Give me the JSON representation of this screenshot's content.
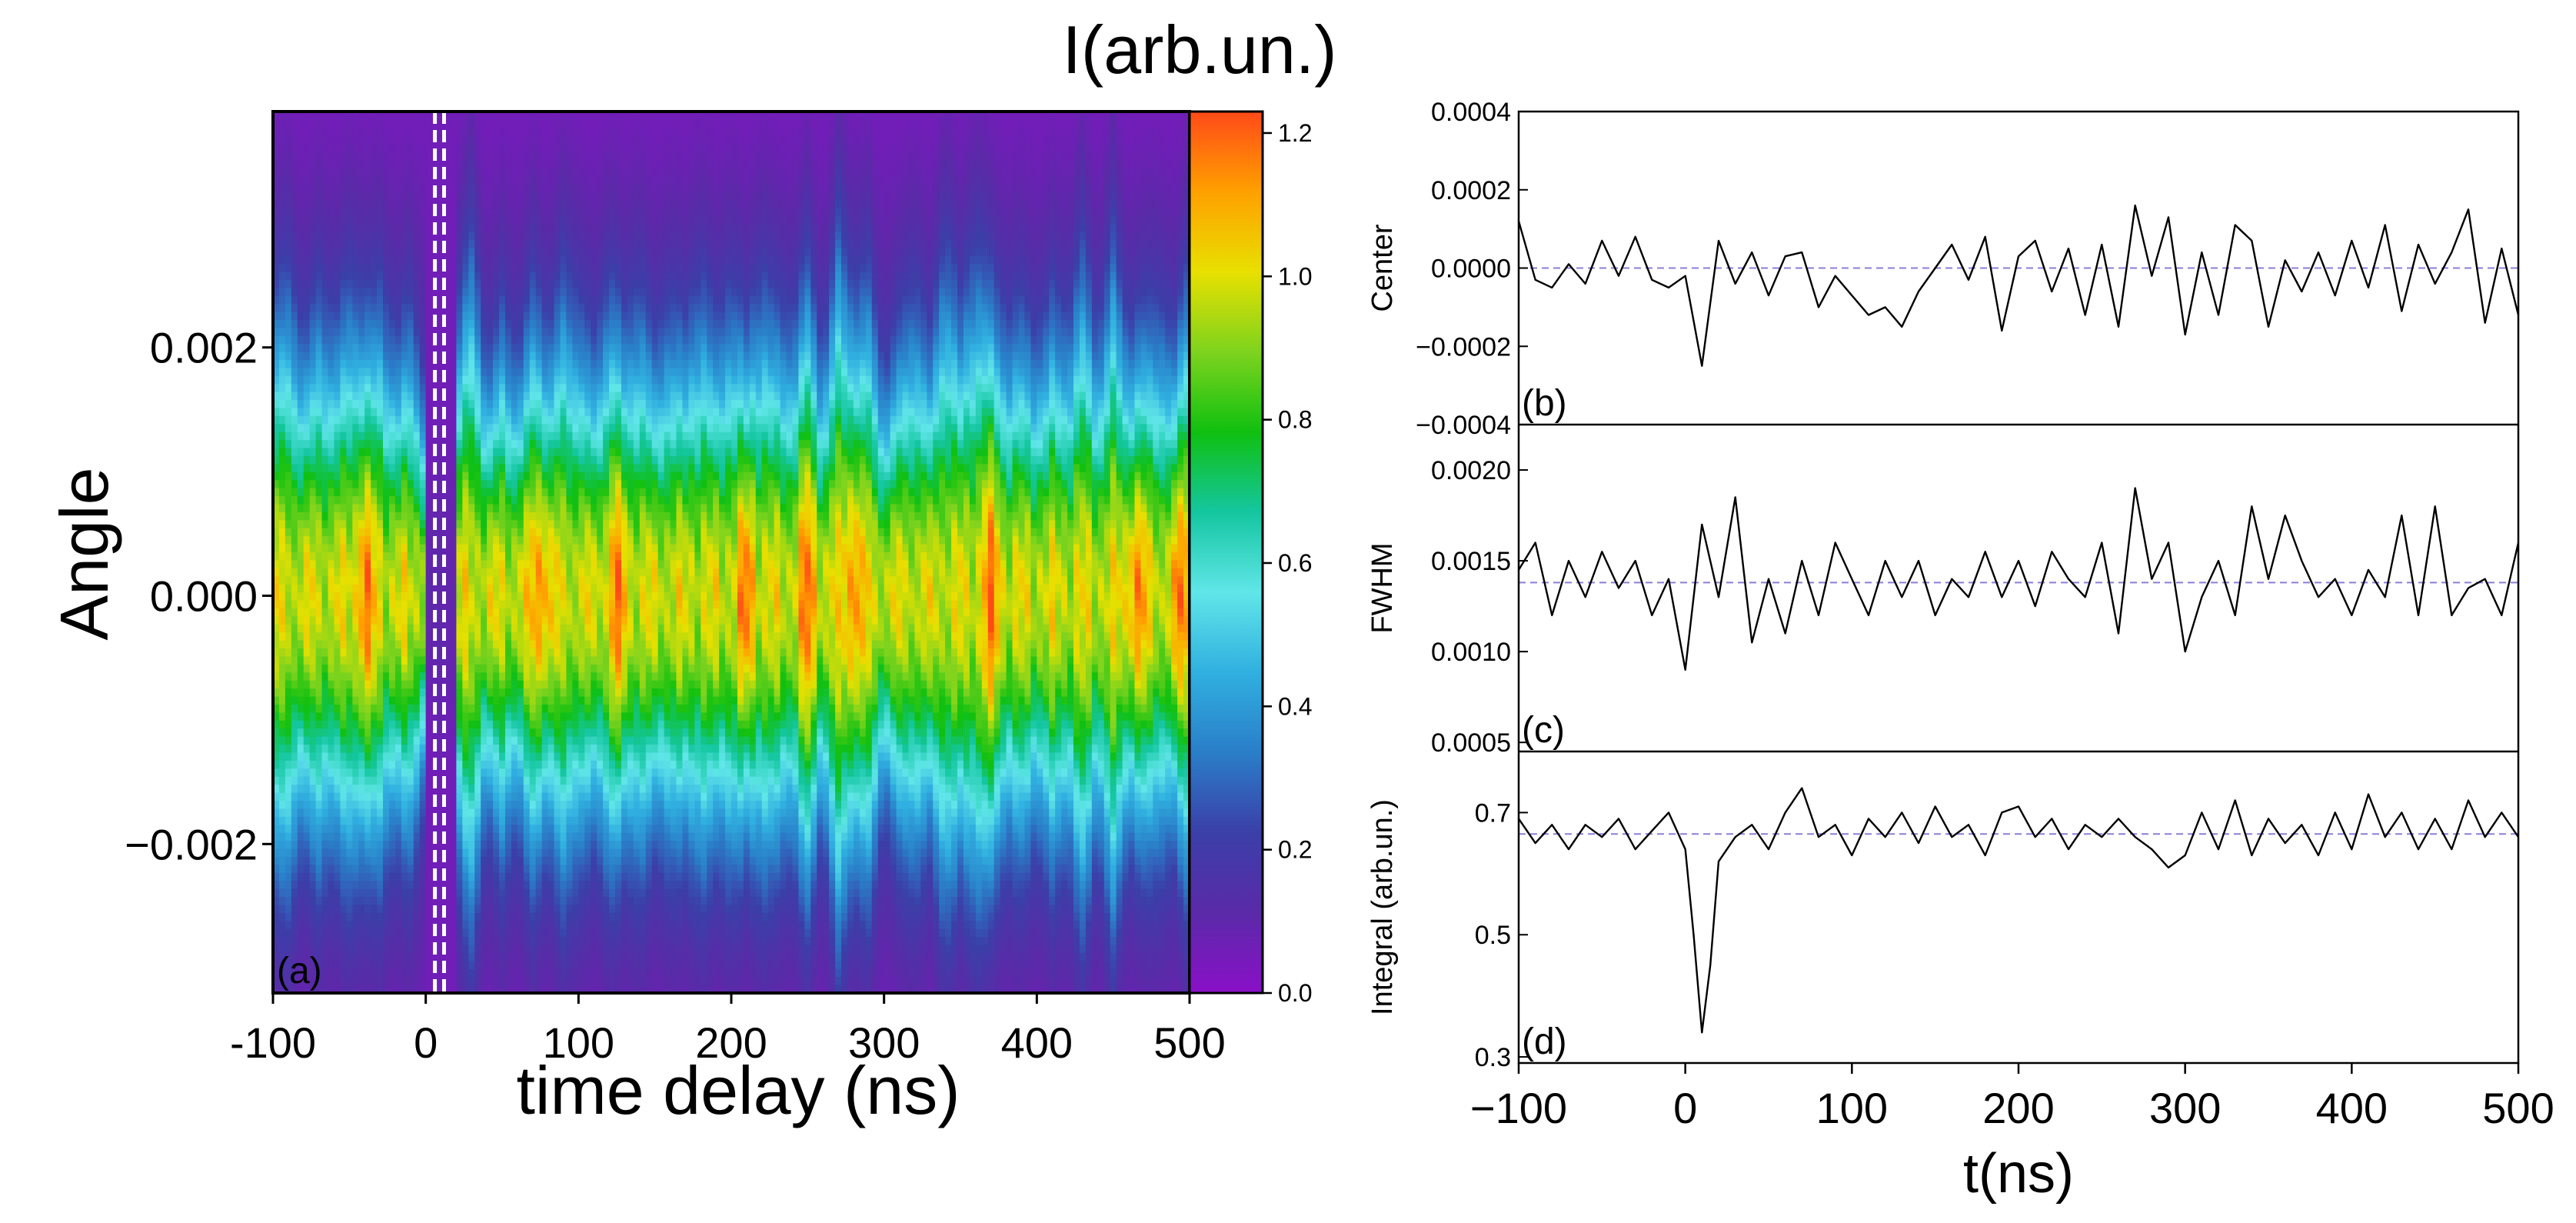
{
  "chart_data": [
    {
      "type": "heatmap",
      "panel_label": "(a)",
      "xlabel": "time delay (ns)",
      "ylabel": "Angle",
      "xlim": [
        -100,
        500
      ],
      "ylim": [
        -0.0032,
        0.0039
      ],
      "x_ticks": [
        -100,
        0,
        100,
        200,
        300,
        400,
        500
      ],
      "y_ticks": [
        -0.002,
        0.0,
        0.002
      ],
      "y_tick_labels": [
        "−0.002",
        "0.000",
        "0.002"
      ],
      "colorbar": {
        "title": "I(arb.un.)",
        "range": [
          0.0,
          1.23
        ],
        "ticks": [
          0.0,
          0.2,
          0.4,
          0.6,
          0.8,
          1.0,
          1.2
        ],
        "tick_labels": [
          "0.0",
          "0.2",
          "0.4",
          "0.6",
          "0.8",
          "1.0",
          "1.2"
        ],
        "colormap": [
          "#8a10c8",
          "#5a2aa8",
          "#3b3fa8",
          "#2a7ec8",
          "#30b0e0",
          "#60e6e8",
          "#14c6a0",
          "#10c010",
          "#7ed31e",
          "#e8e000",
          "#ffa000",
          "#ff4a18"
        ]
      },
      "marker_lines_x": [
        6,
        12
      ],
      "description_free": true,
      "peak_times": [
        -40,
        75,
        125,
        210,
        250,
        280,
        370,
        465,
        495
      ],
      "beam_center": 0.0,
      "beam_fwhm_typical": 0.0014,
      "dip_time": 10
    },
    {
      "type": "line",
      "panel_label": "(b)",
      "ylabel": "Center",
      "xlim": [
        -100,
        500
      ],
      "ylim": [
        -0.0004,
        0.0004
      ],
      "y_ticks": [
        -0.0004,
        -0.0002,
        0.0,
        0.0002,
        0.0004
      ],
      "y_tick_labels": [
        "−0.0004",
        "−0.0002",
        "0.0000",
        "0.0002",
        "0.0004"
      ],
      "reference_line": 0.0,
      "x": [
        -100,
        -90,
        -80,
        -70,
        -60,
        -50,
        -40,
        -30,
        -20,
        -10,
        0,
        10,
        20,
        30,
        40,
        50,
        60,
        70,
        80,
        90,
        100,
        110,
        120,
        130,
        140,
        150,
        160,
        170,
        180,
        190,
        200,
        210,
        220,
        230,
        240,
        250,
        260,
        270,
        280,
        290,
        300,
        310,
        320,
        330,
        340,
        350,
        360,
        370,
        380,
        390,
        400,
        410,
        420,
        430,
        440,
        450,
        460,
        470,
        480,
        490,
        500
      ],
      "y": [
        0.00012,
        -3e-05,
        -5e-05,
        1e-05,
        -4e-05,
        7e-05,
        -2e-05,
        8e-05,
        -3e-05,
        -5e-05,
        -2e-05,
        -0.00025,
        7e-05,
        -4e-05,
        4e-05,
        -7e-05,
        3e-05,
        4e-05,
        -0.0001,
        -2e-05,
        -7e-05,
        -0.00012,
        -0.0001,
        -0.00015,
        -6e-05,
        0.0,
        6e-05,
        -3e-05,
        8e-05,
        -0.00016,
        3e-05,
        7e-05,
        -6e-05,
        5e-05,
        -0.00012,
        6e-05,
        -0.00015,
        0.00016,
        -2e-05,
        0.00013,
        -0.00017,
        4e-05,
        -0.00012,
        0.00011,
        7e-05,
        -0.00015,
        2e-05,
        -6e-05,
        4e-05,
        -7e-05,
        7e-05,
        -5e-05,
        0.00011,
        -0.00011,
        6e-05,
        -4e-05,
        4e-05,
        0.00015,
        -0.00014,
        5e-05,
        -0.00012
      ]
    },
    {
      "type": "line",
      "panel_label": "(c)",
      "ylabel": "FWHM",
      "xlim": [
        -100,
        500
      ],
      "ylim": [
        0.00045,
        0.00225
      ],
      "y_ticks": [
        0.0005,
        0.001,
        0.0015,
        0.002
      ],
      "y_tick_labels": [
        "0.0005",
        "0.0010",
        "0.0015",
        "0.0020"
      ],
      "reference_line": 0.00138,
      "x": [
        -100,
        -90,
        -80,
        -70,
        -60,
        -50,
        -40,
        -30,
        -20,
        -10,
        0,
        10,
        20,
        30,
        40,
        50,
        60,
        70,
        80,
        90,
        100,
        110,
        120,
        130,
        140,
        150,
        160,
        170,
        180,
        190,
        200,
        210,
        220,
        230,
        240,
        250,
        260,
        270,
        280,
        290,
        300,
        310,
        320,
        330,
        340,
        350,
        360,
        370,
        380,
        390,
        400,
        410,
        420,
        430,
        440,
        450,
        460,
        470,
        480,
        490,
        500
      ],
      "y": [
        0.00145,
        0.0016,
        0.0012,
        0.0015,
        0.0013,
        0.00155,
        0.00135,
        0.0015,
        0.0012,
        0.0014,
        0.0009,
        0.0017,
        0.0013,
        0.00185,
        0.00105,
        0.0014,
        0.0011,
        0.0015,
        0.0012,
        0.0016,
        0.0014,
        0.0012,
        0.0015,
        0.0013,
        0.0015,
        0.0012,
        0.0014,
        0.0013,
        0.00155,
        0.0013,
        0.0015,
        0.00125,
        0.00155,
        0.0014,
        0.0013,
        0.0016,
        0.0011,
        0.0019,
        0.0014,
        0.0016,
        0.001,
        0.0013,
        0.0015,
        0.0012,
        0.0018,
        0.0014,
        0.00175,
        0.0015,
        0.0013,
        0.0014,
        0.0012,
        0.00145,
        0.0013,
        0.00175,
        0.0012,
        0.0018,
        0.0012,
        0.00135,
        0.0014,
        0.0012,
        0.0016
      ]
    },
    {
      "type": "line",
      "panel_label": "(d)",
      "ylabel": "Integral (arb.un.)",
      "xlabel": "t(ns)",
      "xlim": [
        -100,
        500
      ],
      "ylim": [
        0.29,
        0.8
      ],
      "y_ticks": [
        0.3,
        0.5,
        0.7
      ],
      "y_tick_labels": [
        "0.3",
        "0.5",
        "0.7"
      ],
      "x_ticks": [
        -100,
        0,
        100,
        200,
        300,
        400,
        500
      ],
      "x_tick_labels": [
        "−100",
        "0",
        "100",
        "200",
        "300",
        "400",
        "500"
      ],
      "reference_line": 0.665,
      "x": [
        -100,
        -90,
        -80,
        -70,
        -60,
        -50,
        -40,
        -30,
        -20,
        -10,
        0,
        5,
        10,
        15,
        20,
        30,
        40,
        50,
        60,
        70,
        80,
        90,
        100,
        110,
        120,
        130,
        140,
        150,
        160,
        170,
        180,
        190,
        200,
        210,
        220,
        230,
        240,
        250,
        260,
        270,
        280,
        290,
        300,
        310,
        320,
        330,
        340,
        350,
        360,
        370,
        380,
        390,
        400,
        410,
        420,
        430,
        440,
        450,
        460,
        470,
        480,
        490,
        500
      ],
      "y": [
        0.69,
        0.65,
        0.68,
        0.64,
        0.68,
        0.66,
        0.69,
        0.64,
        0.67,
        0.7,
        0.64,
        0.5,
        0.34,
        0.45,
        0.62,
        0.66,
        0.68,
        0.64,
        0.7,
        0.74,
        0.66,
        0.68,
        0.63,
        0.69,
        0.66,
        0.7,
        0.65,
        0.71,
        0.66,
        0.68,
        0.63,
        0.7,
        0.71,
        0.66,
        0.69,
        0.64,
        0.68,
        0.66,
        0.69,
        0.66,
        0.64,
        0.61,
        0.63,
        0.7,
        0.64,
        0.72,
        0.63,
        0.69,
        0.65,
        0.68,
        0.63,
        0.7,
        0.64,
        0.73,
        0.66,
        0.7,
        0.64,
        0.69,
        0.64,
        0.72,
        0.66,
        0.7,
        0.66
      ]
    }
  ]
}
